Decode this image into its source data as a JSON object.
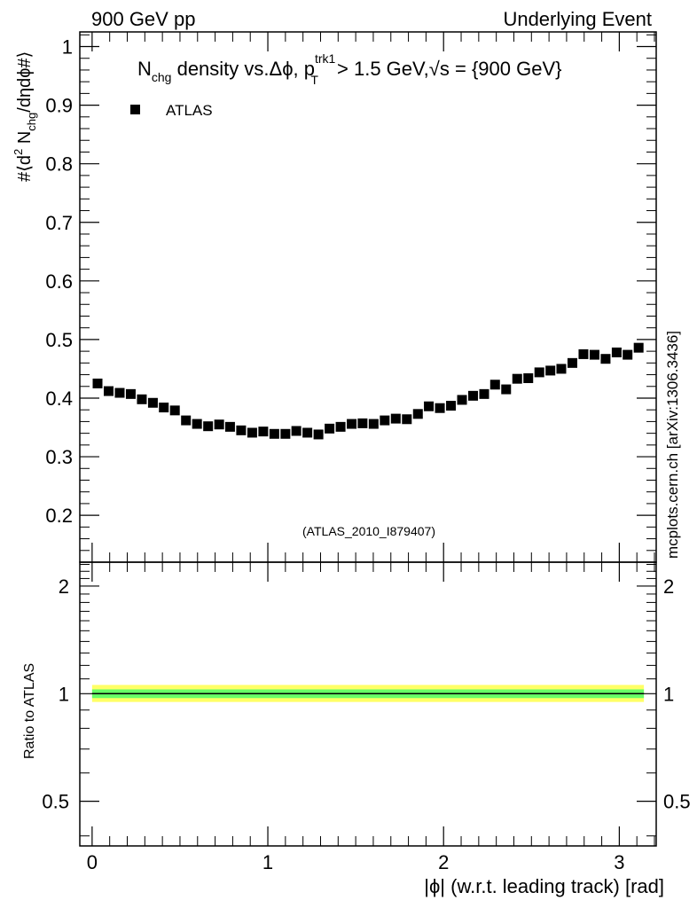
{
  "header": {
    "left": "900 GeV pp",
    "right": "Underlying Event"
  },
  "side_note": "mcplots.cern.ch [arXiv:1306.3436]",
  "analysis_tag": "(ATLAS_2010_I879407)",
  "colors": {
    "marker": "#000000",
    "band_outer": "#ffff66",
    "band_inner": "#66ff66",
    "ref_line": "#000000",
    "analysis_tag": "#a0a0a0",
    "side_note": "#808080"
  },
  "chart_data": [
    {
      "type": "scatter",
      "panel": "main",
      "title": {
        "base": "N",
        "sub1": "chg",
        "mid": " density vs.Δϕ, p",
        "sup2": "trk1",
        "sub2": "T",
        "tail": " > 1.5 GeV,",
        "sqrt": "√s",
        "end": " = {900 GeV}"
      },
      "ylabel": {
        "p1": "#⟨d",
        "sup": "2",
        "p2": " N",
        "sub": "chg",
        "p3": "/dηdϕ#⟩"
      },
      "xlim": [
        -0.07,
        3.21
      ],
      "ylim": [
        0.12,
        1.025
      ],
      "y_ticks": [
        "0.2",
        "0.3",
        "0.4",
        "0.5",
        "0.6",
        "0.7",
        "0.8",
        "0.9",
        "1"
      ],
      "legend": {
        "position": "top-left",
        "entries": [
          "ATLAS"
        ]
      },
      "series": [
        {
          "name": "ATLAS",
          "x": [
            0.031,
            0.094,
            0.157,
            0.22,
            0.283,
            0.346,
            0.408,
            0.471,
            0.534,
            0.597,
            0.66,
            0.723,
            0.785,
            0.848,
            0.911,
            0.974,
            1.037,
            1.1,
            1.162,
            1.225,
            1.288,
            1.351,
            1.414,
            1.477,
            1.539,
            1.602,
            1.665,
            1.728,
            1.791,
            1.854,
            1.916,
            1.979,
            2.042,
            2.105,
            2.168,
            2.231,
            2.293,
            2.356,
            2.419,
            2.482,
            2.545,
            2.608,
            2.67,
            2.733,
            2.796,
            2.859,
            2.922,
            2.985,
            3.047,
            3.11
          ],
          "y": [
            0.425,
            0.412,
            0.409,
            0.407,
            0.398,
            0.392,
            0.384,
            0.379,
            0.362,
            0.356,
            0.352,
            0.355,
            0.351,
            0.345,
            0.341,
            0.343,
            0.339,
            0.339,
            0.344,
            0.341,
            0.338,
            0.348,
            0.351,
            0.356,
            0.357,
            0.356,
            0.362,
            0.365,
            0.364,
            0.373,
            0.386,
            0.383,
            0.387,
            0.397,
            0.404,
            0.407,
            0.423,
            0.415,
            0.433,
            0.434,
            0.444,
            0.447,
            0.45,
            0.46,
            0.475,
            0.474,
            0.467,
            0.478,
            0.474,
            0.486
          ]
        }
      ]
    },
    {
      "type": "area",
      "panel": "ratio",
      "ylabel": "Ratio to ATLAS",
      "xlabel": "|ϕ| (w.r.t. leading track) [rad]",
      "xlim": [
        -0.07,
        3.21
      ],
      "x_ticks": [
        "0",
        "1",
        "2",
        "3"
      ],
      "ylim": [
        0.375,
        2.333
      ],
      "log_y": true,
      "y_ticks": [
        "0.5",
        "1",
        "2"
      ],
      "reference_line": 1.0,
      "bands": [
        {
          "level": "outer",
          "lower": 0.948,
          "upper": 1.058
        },
        {
          "level": "inner",
          "lower": 0.972,
          "upper": 1.028
        }
      ],
      "band_x_range": [
        0.0,
        3.14
      ]
    }
  ]
}
